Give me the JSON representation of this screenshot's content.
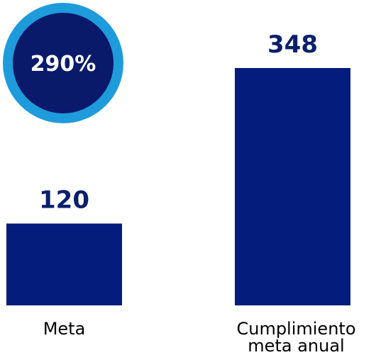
{
  "chart_data": {
    "type": "bar",
    "categories": [
      "Meta",
      "Cumplimiento meta anual"
    ],
    "category_lines": [
      [
        "Meta"
      ],
      [
        "Cumplimiento",
        "meta anual"
      ]
    ],
    "values": [
      120,
      348
    ],
    "data_labels": [
      "120",
      "348"
    ],
    "title": "",
    "xlabel": "",
    "ylabel": "",
    "ylim": [
      0,
      348
    ],
    "grid": false,
    "legend": "none",
    "bar_color": "#041C7C",
    "label_color": "#0B1F6B",
    "badge": {
      "text": "290%",
      "fill_color": "#0A1A6B",
      "ring_color": "#1E9BDB",
      "text_color": "#FFFFFF"
    }
  }
}
